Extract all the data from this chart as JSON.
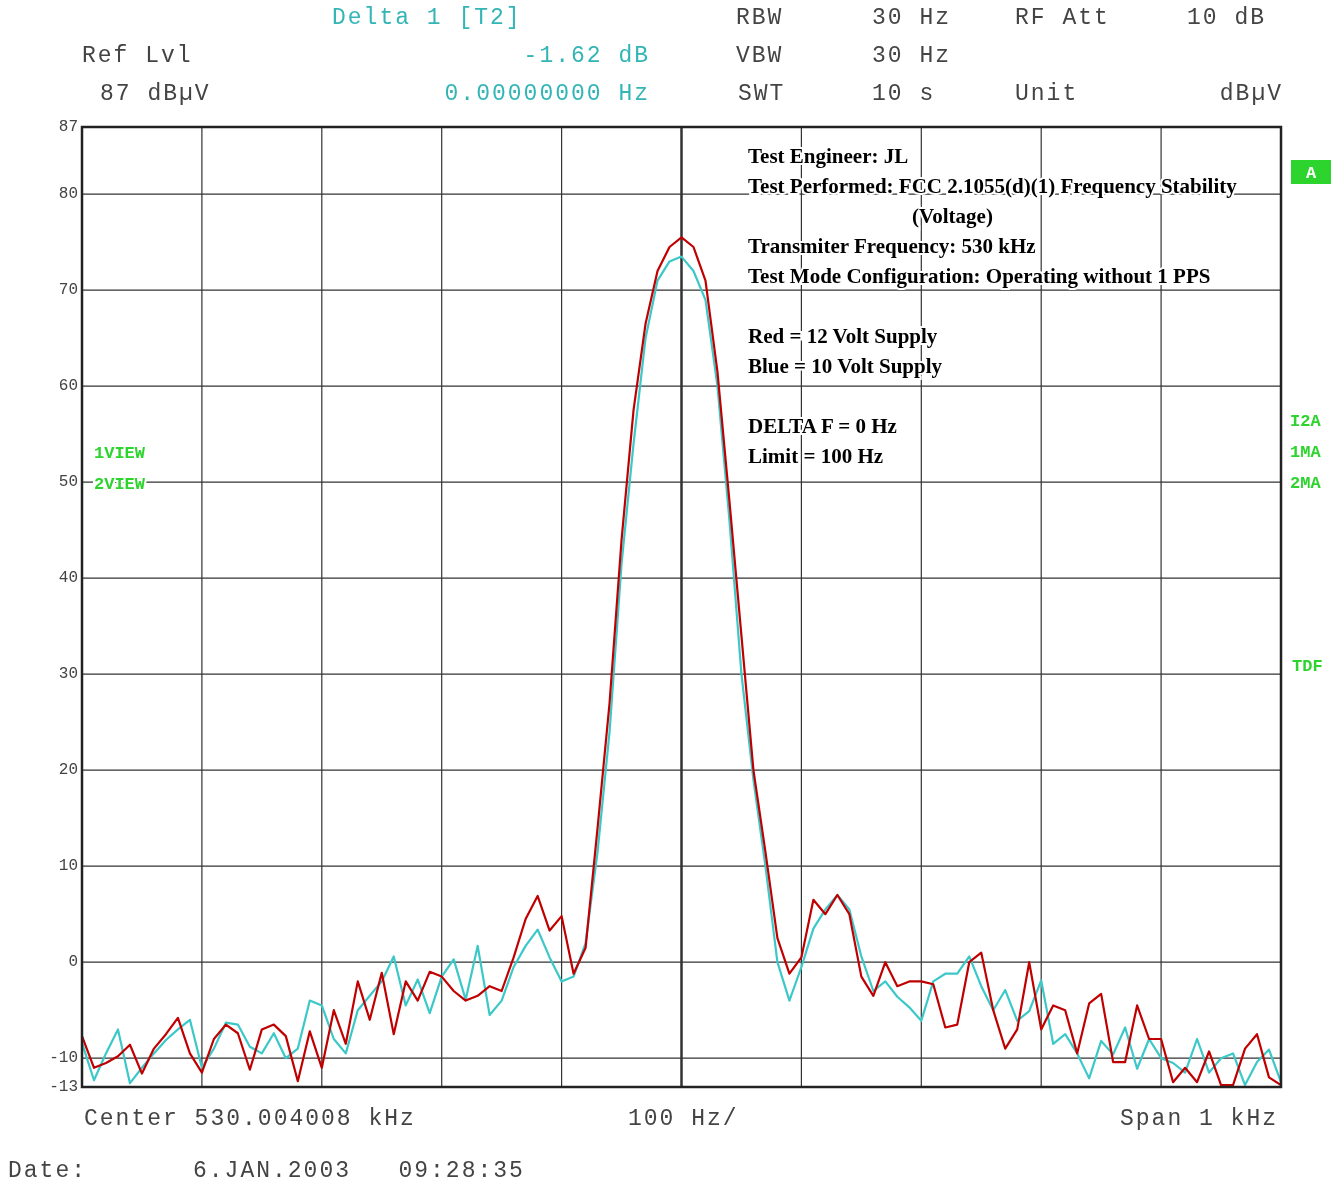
{
  "chart_data": {
    "type": "line",
    "categories": [
      null,
      null,
      null,
      null,
      null,
      null,
      null,
      null,
      null,
      null,
      null,
      null,
      null,
      null,
      null,
      null,
      null,
      null,
      null,
      null,
      null,
      null,
      null,
      null,
      null,
      null,
      null,
      null,
      null,
      null,
      null,
      null,
      null,
      null,
      null,
      null,
      null,
      null,
      null,
      null,
      null,
      null,
      null,
      null,
      null,
      null,
      null,
      null,
      null,
      null,
      null,
      null,
      null,
      null,
      null,
      null,
      null,
      null,
      null,
      null,
      null,
      null,
      null,
      null,
      null,
      null,
      null,
      null,
      null,
      null,
      null,
      null,
      null,
      null,
      null,
      null,
      null,
      null,
      null,
      null,
      null,
      null,
      null,
      null,
      null,
      null,
      null,
      null,
      null,
      null,
      null,
      null,
      null,
      null,
      null,
      null,
      null,
      null,
      null,
      null,
      null
    ],
    "ylim": [
      -13,
      87
    ],
    "yticks": [
      -13,
      -10,
      0,
      10,
      20,
      30,
      40,
      50,
      60,
      70,
      80,
      87
    ],
    "tick_labels": "y",
    "grid": true,
    "marker": "none",
    "line_style": "solid",
    "series": [
      {
        "color": "#3cc8c8",
        "values": [
          -8.4,
          -12.3,
          -9.5,
          -7.0,
          -12.6,
          -11,
          -9.5,
          -8.1,
          -7,
          -6.0,
          -11,
          -9,
          -6.3,
          -6.5,
          -8.8,
          -9.5,
          -7.4,
          -10,
          -9,
          -4,
          -4.5,
          -8,
          -9.5,
          -5,
          -3.5,
          -2,
          0.6,
          -4.5,
          -1.8,
          -5.3,
          -1.5,
          0.3,
          -3.9,
          1.7,
          -5.5,
          -4,
          -0.5,
          1.7,
          3.4,
          0.5,
          -2,
          -1.5,
          2,
          11.5,
          24,
          41.5,
          54,
          65,
          71,
          73,
          73.5,
          72,
          69,
          60,
          46,
          30,
          19,
          10,
          0,
          -4,
          -0.5,
          3.5,
          5.5,
          7,
          5.5,
          0.6,
          -3,
          -2,
          -3.6,
          -4.7,
          -6.1,
          -2,
          -1.2,
          -1.2,
          0.6,
          -2.5,
          -5,
          -2.9,
          -6.1,
          -5.1,
          -1.9,
          -8.5,
          -7.5,
          -9.5,
          -12.1,
          -8.2,
          -9.6,
          -6.8,
          -11.1,
          -8,
          -10,
          -10.5,
          -11.5,
          -8,
          -11.5,
          -10,
          -9.5,
          -12.8,
          -10.4,
          -9.1,
          -12.5
        ]
      },
      {
        "color": "#c00000",
        "values": [
          -7.7,
          -11,
          -10.5,
          -9.8,
          -8.6,
          -11.6,
          -9,
          -7.5,
          -5.8,
          -9.5,
          -11.5,
          -8,
          -6.5,
          -7.4,
          -11.2,
          -7,
          -6.5,
          -7.7,
          -12.4,
          -7.2,
          -11,
          -5,
          -8.5,
          -2,
          -6,
          -1.1,
          -7.5,
          -2,
          -4,
          -1,
          -1.5,
          -3,
          -4,
          -3.5,
          -2.5,
          -3,
          0.5,
          4.5,
          6.9,
          3.3,
          4.8,
          -1.2,
          1.5,
          14,
          27,
          44,
          57.5,
          66.5,
          72,
          74.5,
          75.5,
          74.5,
          71,
          61.5,
          48,
          34,
          20,
          11.5,
          2.5,
          -1.2,
          0.5,
          6.5,
          5,
          7,
          5,
          -1.5,
          -3.5,
          0,
          -2.5,
          -2,
          -2,
          -2.3,
          -6.8,
          -6.5,
          0,
          1,
          -5,
          -9,
          -7,
          0,
          -7,
          -4.5,
          -5,
          -9.5,
          -4.3,
          -3.3,
          -10.4,
          -10.4,
          -4.5,
          -8,
          -8,
          -12.5,
          -11,
          -12.5,
          -9.3,
          -12.8,
          -12.8,
          -9,
          -7.5,
          -12,
          -12.8
        ]
      }
    ],
    "annotations": [
      "Delta 1 [T2]",
      "Ref Lvl",
      "-1.62 dB",
      "87 dBµV",
      "0.00000000 Hz",
      "RBW",
      "30 Hz",
      "RF Att",
      "10 dB",
      "VBW",
      "30 Hz",
      "SWT",
      "10 s",
      "Unit",
      "dBµV",
      "1VIEW",
      "2VIEW",
      "A",
      "I2A",
      "1MA",
      "2MA",
      "TDF",
      "Center 530.004008 kHz",
      "100 Hz/",
      "Span 1 kHz",
      "Date:",
      "6.JAN.2003   09:28:35",
      "Test Engineer: JL",
      "Test Performed: FCC 2.1055(d)(1) Frequency Stability (Voltage)",
      "Transmiter Frequency: 530 kHz",
      "Test Mode Configuration: Operating without 1 PPS",
      "Red = 12 Volt Supply",
      "Blue = 10 Volt Supply",
      "DELTA F = 0 Hz",
      "Limit = 100 Hz"
    ]
  }
}
